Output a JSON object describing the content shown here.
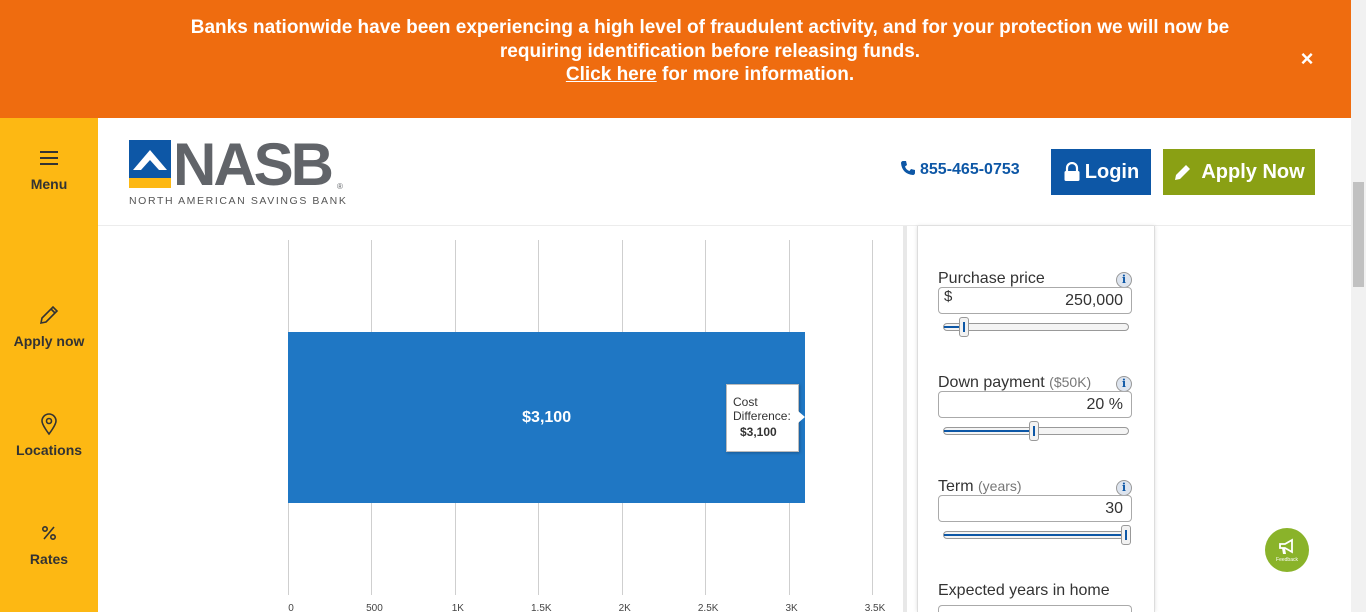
{
  "alert": {
    "message_line1": "Banks nationwide have been experiencing a high level of fraudulent activity, and for your protection we will now be requiring identification before releasing funds.",
    "link_text": "Click here",
    "link_suffix": " for more information.",
    "close_label": "×"
  },
  "sidenav": {
    "items": [
      {
        "label": "Menu",
        "icon": "hamburger-icon"
      },
      {
        "label": "Apply now",
        "icon": "pencil-icon"
      },
      {
        "label": "Locations",
        "icon": "location-pin-icon"
      },
      {
        "label": "Rates",
        "icon": "percent-icon"
      }
    ]
  },
  "header": {
    "logo_word": "NASB",
    "logo_registered": "®",
    "logo_sub": "NORTH AMERICAN SAVINGS BANK",
    "phone": "855-465-0753",
    "login_label": "Login",
    "apply_label": "Apply Now",
    "colors": {
      "brand_blue": "#0d57a6",
      "brand_yellow": "#fdb813",
      "apply_green": "#8aa014",
      "alert_orange": "#ef6c0f"
    }
  },
  "chart_data": {
    "type": "bar",
    "orientation": "horizontal",
    "categories": [
      ""
    ],
    "values": [
      3100
    ],
    "data_labels": [
      "$3,100"
    ],
    "xlim": [
      0,
      3500
    ],
    "ticks": [
      0,
      500,
      1000,
      1500,
      2000,
      2500,
      3000,
      3500
    ],
    "tick_labels": [
      "0",
      "500",
      "1K",
      "1.5K",
      "2K",
      "2.5K",
      "3K",
      "3.5K"
    ],
    "grid": true,
    "color": "#1f77c4",
    "tooltip": {
      "label": "Cost Difference:",
      "value": "$3,100"
    }
  },
  "calculator": {
    "purchase_price": {
      "label": "Purchase price",
      "prefix": "$",
      "value": "250,000",
      "slider_fraction": 0.11
    },
    "down_payment": {
      "label": "Down payment",
      "hint": "($50K)",
      "value": "20 %",
      "slider_fraction": 0.49
    },
    "term": {
      "label": "Term",
      "hint": "(years)",
      "value": "30",
      "slider_fraction": 0.99
    },
    "expected_years": {
      "label": "Expected years in home"
    },
    "info_glyph": "i"
  },
  "feedback": {
    "label": "Feedback"
  }
}
